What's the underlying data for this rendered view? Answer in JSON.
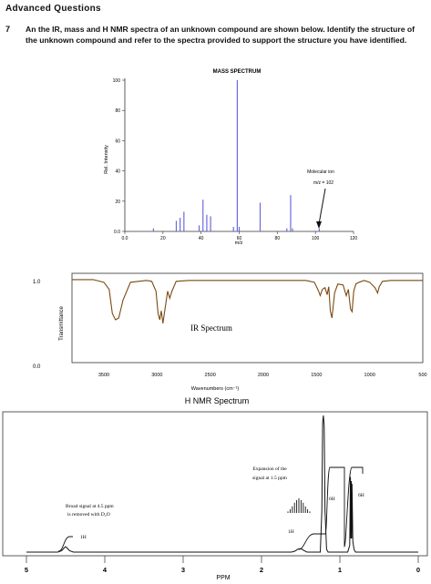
{
  "page": {
    "heading": "Advanced Questions",
    "question_number": "7",
    "question_text": "An the IR, mass and H NMR spectra of an unknown compound are shown below. Identify the structure of the unknown compound and refer to the spectra provided to support the structure you have identified."
  },
  "chart_data": [
    {
      "type": "bar",
      "title": "MASS SPECTRUM",
      "xlabel": "m/z",
      "ylabel": "Rel. Intensity",
      "xlim": [
        0,
        120
      ],
      "ylim": [
        0,
        100
      ],
      "x_ticks": [
        0,
        20,
        40,
        60,
        80,
        100,
        120
      ],
      "x_tick_labels": [
        "0.0",
        "20",
        "40",
        "60",
        "80",
        "100",
        "120"
      ],
      "y_ticks": [
        0,
        20,
        40,
        60,
        80,
        100
      ],
      "y_tick_labels": [
        "0.0",
        "20",
        "40",
        "60",
        "80",
        "100"
      ],
      "peaks": [
        {
          "mz": 15,
          "intensity": 2
        },
        {
          "mz": 27,
          "intensity": 7
        },
        {
          "mz": 29,
          "intensity": 9
        },
        {
          "mz": 31,
          "intensity": 13
        },
        {
          "mz": 39,
          "intensity": 4
        },
        {
          "mz": 41,
          "intensity": 21
        },
        {
          "mz": 43,
          "intensity": 11
        },
        {
          "mz": 45,
          "intensity": 10
        },
        {
          "mz": 57,
          "intensity": 3
        },
        {
          "mz": 59,
          "intensity": 100
        },
        {
          "mz": 60,
          "intensity": 3
        },
        {
          "mz": 71,
          "intensity": 19
        },
        {
          "mz": 85,
          "intensity": 2
        },
        {
          "mz": 87,
          "intensity": 24
        },
        {
          "mz": 88,
          "intensity": 2
        },
        {
          "mz": 102,
          "intensity": 2
        }
      ],
      "annotation": {
        "line1": "Molecular ion",
        "line2": "m/z = 102",
        "mz": 102
      }
    },
    {
      "type": "line",
      "title": "IR Spectrum",
      "xlabel": "Wavenumbers (cm⁻¹)",
      "ylabel": "Transmittance",
      "xlim": [
        3800,
        500
      ],
      "ylim": [
        0,
        1
      ],
      "x_ticks": [
        3500,
        3000,
        2500,
        2000,
        1500,
        1000,
        500
      ],
      "y_tick_labels": [
        "0.0",
        "1.0"
      ],
      "series_color": "#7a4a10",
      "x": [
        3800,
        3600,
        3500,
        3450,
        3420,
        3390,
        3360,
        3320,
        3250,
        3100,
        3050,
        3010,
        2990,
        2975,
        2960,
        2945,
        2930,
        2900,
        2880,
        2860,
        2820,
        2700,
        2500,
        2000,
        1600,
        1520,
        1480,
        1465,
        1445,
        1420,
        1400,
        1385,
        1370,
        1355,
        1330,
        1300,
        1250,
        1220,
        1200,
        1180,
        1165,
        1150,
        1130,
        1100,
        1050,
        1000,
        950,
        925,
        910,
        880,
        800,
        700,
        600,
        500
      ],
      "y": [
        0.93,
        0.93,
        0.9,
        0.82,
        0.55,
        0.48,
        0.5,
        0.7,
        0.9,
        0.92,
        0.91,
        0.8,
        0.55,
        0.48,
        0.58,
        0.44,
        0.56,
        0.8,
        0.72,
        0.8,
        0.91,
        0.92,
        0.92,
        0.92,
        0.92,
        0.9,
        0.8,
        0.75,
        0.82,
        0.84,
        0.76,
        0.85,
        0.58,
        0.5,
        0.78,
        0.88,
        0.87,
        0.75,
        0.82,
        0.6,
        0.57,
        0.8,
        0.88,
        0.9,
        0.92,
        0.9,
        0.84,
        0.78,
        0.85,
        0.91,
        0.92,
        0.92,
        0.92,
        0.92
      ]
    },
    {
      "type": "line",
      "title": "H NMR Spectrum",
      "xlabel": "PPM",
      "xlim": [
        5,
        0
      ],
      "x_ticks": [
        5,
        4,
        3,
        2,
        1,
        0
      ],
      "series_color": "#111111",
      "x": [
        5.0,
        4.6,
        4.55,
        4.52,
        4.5,
        4.48,
        4.45,
        4.4,
        3.0,
        1.62,
        1.58,
        1.56,
        1.54,
        1.52,
        1.5,
        1.48,
        1.46,
        1.44,
        1.42,
        1.38,
        1.25,
        1.23,
        1.22,
        1.21,
        1.2,
        1.19,
        1.17,
        1.15,
        0.9,
        0.875,
        0.865,
        0.86,
        0.855,
        0.85,
        0.845,
        0.835,
        0.82,
        0.8,
        0.0
      ],
      "y": [
        0.0,
        0.0,
        0.01,
        0.03,
        0.04,
        0.03,
        0.01,
        0.0,
        0.0,
        0.0,
        0.006,
        0.012,
        0.02,
        0.024,
        0.024,
        0.02,
        0.012,
        0.006,
        0.0,
        0.0,
        0.0,
        0.3,
        0.95,
        1.0,
        0.92,
        0.3,
        0.02,
        0.0,
        0.0,
        0.05,
        0.55,
        0.1,
        0.52,
        0.1,
        0.5,
        0.08,
        0.02,
        0.0,
        0.0
      ],
      "annotations": {
        "broad_signal_line1": "Broad signal at 4.5 ppm",
        "broad_signal_line2": "is removed with D₂O",
        "oh_label": "1H",
        "expansion_line1": "Expansion of the",
        "expansion_line2": "signal at 1.5 ppm",
        "ch_label": "1H",
        "six_h_1": "6H",
        "six_h_2": "6H"
      },
      "expansion_multiplet": [
        0.1,
        0.25,
        0.45,
        0.7,
        0.88,
        1.0,
        0.88,
        0.7,
        0.45,
        0.25,
        0.1
      ]
    }
  ]
}
